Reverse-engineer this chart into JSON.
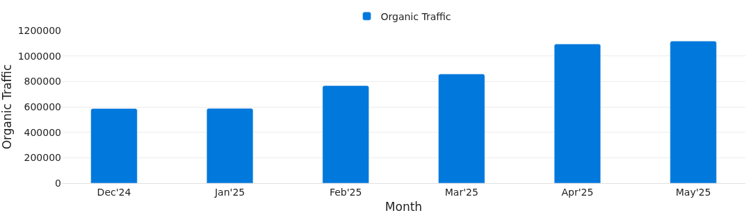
{
  "chart_data": {
    "type": "bar",
    "xlabel": "Month",
    "ylabel": "Organic Traffic",
    "categories": [
      "Dec'24",
      "Jan'25",
      "Feb'25",
      "Mar'25",
      "Apr'25",
      "May'25"
    ],
    "series": [
      {
        "name": "Organic Traffic",
        "color": "#0078dc",
        "values": [
          587000,
          588000,
          767000,
          858000,
          1094000,
          1117000
        ]
      }
    ],
    "ylim": [
      0,
      1200000
    ],
    "yticks": [
      0,
      200000,
      400000,
      600000,
      800000,
      1000000,
      1200000
    ],
    "grid": "y",
    "legend": "top"
  }
}
